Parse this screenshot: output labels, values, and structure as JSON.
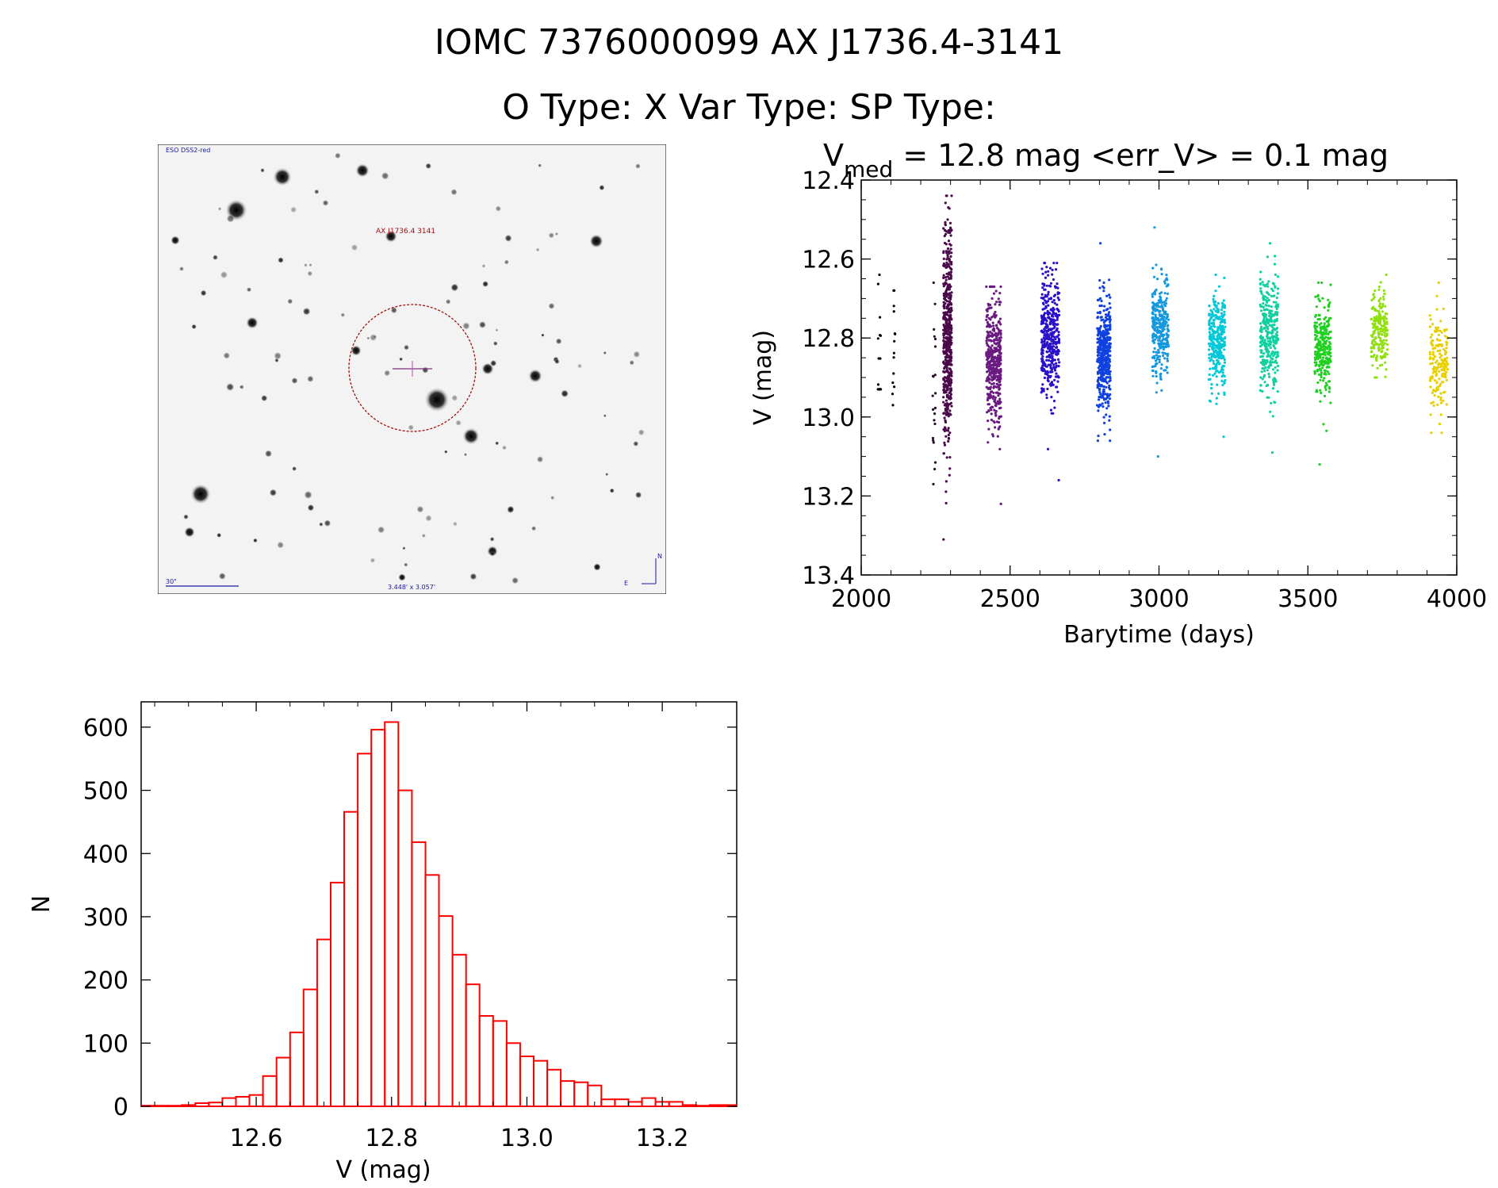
{
  "header": {
    "line1": "IOMC 7376000099   AX J1736.4-3141",
    "line2": "O Type: X  Var Type:   SP Type:"
  },
  "image": {
    "survey_label": "ESO DSS2-red",
    "target_label": "AX J1736.4  3141",
    "scale_label": "30\"",
    "fov_label": "3.448' x 3.057'",
    "north_label": "N",
    "east_label": "E",
    "colors": {
      "circle": "#a01010",
      "label": "#a01010",
      "annot": "#1a1aa0",
      "cross": "#c060c0"
    }
  },
  "lightcurve": {
    "stats_prefix": "V",
    "stats_sub": "med",
    "stats_text": " = 12.8 mag <err_V> = 0.1 mag",
    "xlabel": "Barytime (days)",
    "ylabel": "V (mag)"
  },
  "histogram": {
    "xlabel": "V (mag)",
    "ylabel": "N"
  },
  "chart_data": [
    {
      "type": "scatter",
      "xlabel": "Barytime (days)",
      "ylabel": "V (mag)",
      "xlim": [
        2000,
        4000
      ],
      "ylim": [
        13.4,
        12.4
      ],
      "y_inverted": true,
      "xticks": [
        2000,
        2500,
        3000,
        3500,
        4000
      ],
      "yticks": [
        12.4,
        12.6,
        12.8,
        13.0,
        13.2,
        13.4
      ],
      "seasons": [
        {
          "x_center": 2060,
          "x_width": 12,
          "y_center": 12.82,
          "y_spread": 0.09,
          "y_min": 12.64,
          "y_max": 12.93,
          "n": 14,
          "color": "#000000"
        },
        {
          "x_center": 2110,
          "x_width": 10,
          "y_center": 12.82,
          "y_spread": 0.07,
          "y_min": 12.68,
          "y_max": 12.97,
          "n": 14,
          "color": "#000000"
        },
        {
          "x_center": 2245,
          "x_width": 10,
          "y_center": 12.95,
          "y_spread": 0.14,
          "y_min": 12.66,
          "y_max": 13.17,
          "n": 22,
          "color": "#2a0a2a"
        },
        {
          "x_center": 2290,
          "x_width": 28,
          "y_center": 12.8,
          "y_spread": 0.13,
          "y_min": 12.44,
          "y_max": 13.31,
          "n": 520,
          "color": "#4a0a4a"
        },
        {
          "x_center": 2445,
          "x_width": 50,
          "y_center": 12.86,
          "y_spread": 0.08,
          "y_min": 12.67,
          "y_max": 13.22,
          "n": 420,
          "color": "#6a1a80"
        },
        {
          "x_center": 2635,
          "x_width": 60,
          "y_center": 12.8,
          "y_spread": 0.08,
          "y_min": 12.61,
          "y_max": 13.16,
          "n": 400,
          "color": "#2a10c8"
        },
        {
          "x_center": 2815,
          "x_width": 45,
          "y_center": 12.84,
          "y_spread": 0.07,
          "y_min": 12.56,
          "y_max": 13.06,
          "n": 420,
          "color": "#1040e0"
        },
        {
          "x_center": 3005,
          "x_width": 55,
          "y_center": 12.77,
          "y_spread": 0.06,
          "y_min": 12.52,
          "y_max": 13.1,
          "n": 300,
          "color": "#1498e0"
        },
        {
          "x_center": 3195,
          "x_width": 55,
          "y_center": 12.81,
          "y_spread": 0.06,
          "y_min": 12.64,
          "y_max": 13.05,
          "n": 320,
          "color": "#00c8d8"
        },
        {
          "x_center": 3370,
          "x_width": 60,
          "y_center": 12.79,
          "y_spread": 0.07,
          "y_min": 12.56,
          "y_max": 13.09,
          "n": 340,
          "color": "#10d0a0"
        },
        {
          "x_center": 3550,
          "x_width": 55,
          "y_center": 12.82,
          "y_spread": 0.06,
          "y_min": 12.66,
          "y_max": 13.12,
          "n": 260,
          "color": "#20d020"
        },
        {
          "x_center": 3740,
          "x_width": 55,
          "y_center": 12.78,
          "y_spread": 0.05,
          "y_min": 12.64,
          "y_max": 12.9,
          "n": 200,
          "color": "#90e010"
        },
        {
          "x_center": 3940,
          "x_width": 60,
          "y_center": 12.87,
          "y_spread": 0.06,
          "y_min": 12.66,
          "y_max": 13.04,
          "n": 180,
          "color": "#e8d000"
        }
      ]
    },
    {
      "type": "bar",
      "style": "histogram-outline",
      "color": "#ff0000",
      "xlabel": "V (mag)",
      "ylabel": "N",
      "xlim": [
        12.43,
        13.31
      ],
      "ylim": [
        0,
        640
      ],
      "xticks": [
        12.6,
        12.8,
        13.0,
        13.2
      ],
      "yticks": [
        0,
        100,
        200,
        300,
        400,
        500,
        600
      ],
      "bin_start": 12.43,
      "bin_width": 0.02,
      "values": [
        1,
        1,
        1,
        2,
        5,
        6,
        13,
        15,
        18,
        48,
        77,
        117,
        185,
        264,
        354,
        466,
        558,
        596,
        608,
        500,
        418,
        366,
        301,
        240,
        193,
        143,
        135,
        100,
        79,
        72,
        58,
        40,
        38,
        33,
        11,
        11,
        7,
        13,
        7,
        7,
        2,
        1,
        2,
        2
      ]
    }
  ]
}
